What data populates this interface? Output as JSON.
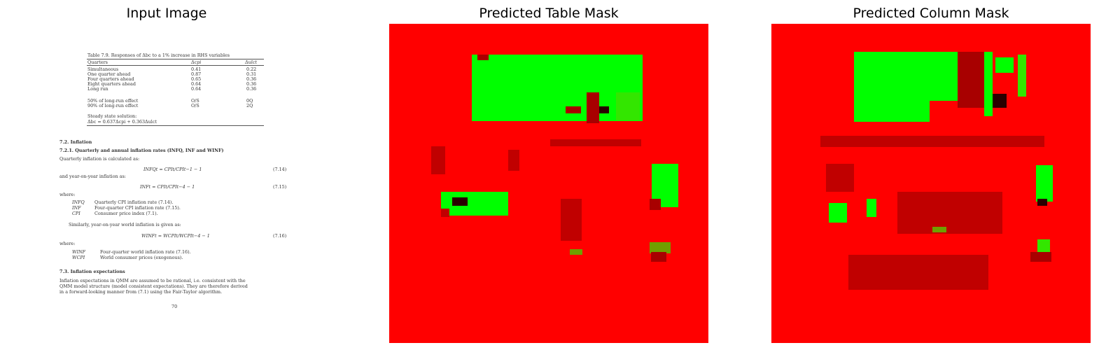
{
  "panels": [
    {
      "title": "Input Image"
    },
    {
      "title": "Predicted Table Mask"
    },
    {
      "title": "Predicted Column Mask"
    }
  ],
  "colors": {
    "mask_background": "#ff0000",
    "mask_foreground": "#00ff00"
  },
  "document": {
    "table_caption": "Table 7.9. Responses of Δbc to a 1% increase in RHS variables",
    "table_headers": [
      "Quarters",
      "Δcpi",
      "Δulct"
    ],
    "table_rows": [
      [
        "Simultaneous",
        "0.41",
        "0.22"
      ],
      [
        "One quarter ahead",
        "0.87",
        "0.31"
      ],
      [
        "Four quarters ahead",
        "0.65",
        "0.36"
      ],
      [
        "Eight quarters ahead",
        "0.64",
        "0.36"
      ],
      [
        "Long run",
        "0.64",
        "0.36"
      ],
      [
        "50% of long-run effect",
        "O/S",
        "0Q"
      ],
      [
        "90% of long-run effect",
        "O/S",
        "2Q"
      ]
    ],
    "steady_state_label": "Steady state solution:",
    "steady_state_eq": "Δbc = 0.637Δcpi + 0.363Δulct",
    "section": "7.2. Inflation",
    "subsection": "7.2.1. Quarterly and annual inflation rates (INFQ, INF and WINF)",
    "p1": "Quarterly inflation is calculated as:",
    "eq1": "INFQt = CPIt/CPIt−1 − 1",
    "eq1_num": "(7.14)",
    "p2": "and year-on-year inflation as:",
    "eq2": "INFt = CPIt/CPIt−4 − 1",
    "eq2_num": "(7.15)",
    "where1": "where:",
    "defs1": [
      {
        "sym": "INFQ",
        "desc": "Quarterly CPI inflation rate (7.14)."
      },
      {
        "sym": "INF",
        "desc": "Four-quarter CPI inflation rate (7.15)."
      },
      {
        "sym": "CPI",
        "desc": "Consumer price index (7.1)."
      }
    ],
    "p3": "Similarly, year-on-year world inflation is given as:",
    "eq3": "WINFt = WCPIt/WCPIt−4 − 1",
    "eq3_num": "(7.16)",
    "where2": "where:",
    "defs2": [
      {
        "sym": "WINF",
        "desc": "Four-quarter world inflation rate (7.16)."
      },
      {
        "sym": "WCPI",
        "desc": "World consumer prices (exogenous)."
      }
    ],
    "section2": "7.3. Inflation expectations",
    "p4_lines": [
      "Inflation expectations in QMM are assumed to be rational, i.e. consistent with the",
      "QMM model structure (model consistent expectations). They are therefore derived",
      "in a forward-looking manner from (7.1) using the Fair-Taylor algorithm."
    ],
    "page_number": "70"
  }
}
